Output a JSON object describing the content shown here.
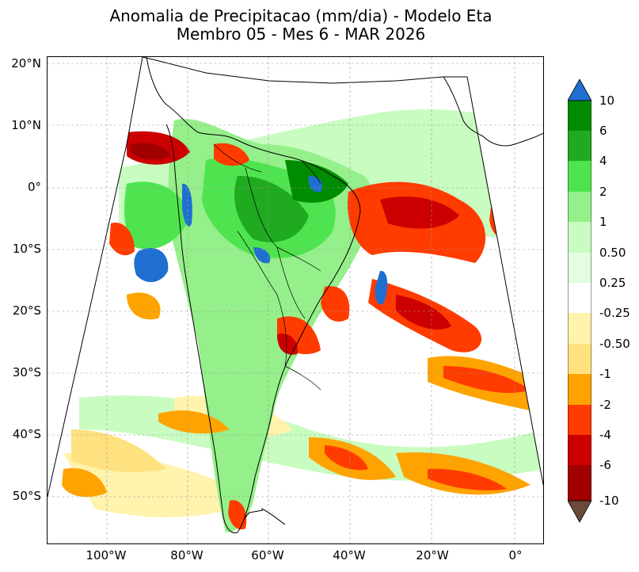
{
  "title_line1": "Anomalia de Precipitacao (mm/dia) - Modelo Eta",
  "title_line2": "Membro 05 - Mes 6 - MAR 2026",
  "map": {
    "lat_labels": [
      "20°N",
      "10°N",
      "0°",
      "10°S",
      "20°S",
      "30°S",
      "40°S",
      "50°S"
    ],
    "lon_labels": [
      "100°W",
      "80°W",
      "60°W",
      "40°W",
      "20°W",
      "0°"
    ],
    "ocean_color": "#ffffff",
    "coast_color": "#000000"
  },
  "colorbar": {
    "labels": [
      "10",
      "6",
      "4",
      "2",
      "1",
      "0.50",
      "0.25",
      "-0.25",
      "-0.50",
      "-1",
      "-2",
      "-4",
      "-6",
      "-10"
    ],
    "colors": {
      "over": "#1f6fd1",
      "gt6": "#008c00",
      "4to6": "#1faa1f",
      "2to4": "#4fe44f",
      "1to2": "#95ef8a",
      "0.5to1": "#c8fcc0",
      "0.25to0.5": "#e2fde0",
      "neutral": "#ffffff",
      "m0.25": "#fff3ad",
      "m0.5": "#ffe27f",
      "m1": "#ffa300",
      "m2": "#ff3b00",
      "m4": "#cc0000",
      "m6": "#a00000",
      "under": "#6b4a3a"
    }
  }
}
